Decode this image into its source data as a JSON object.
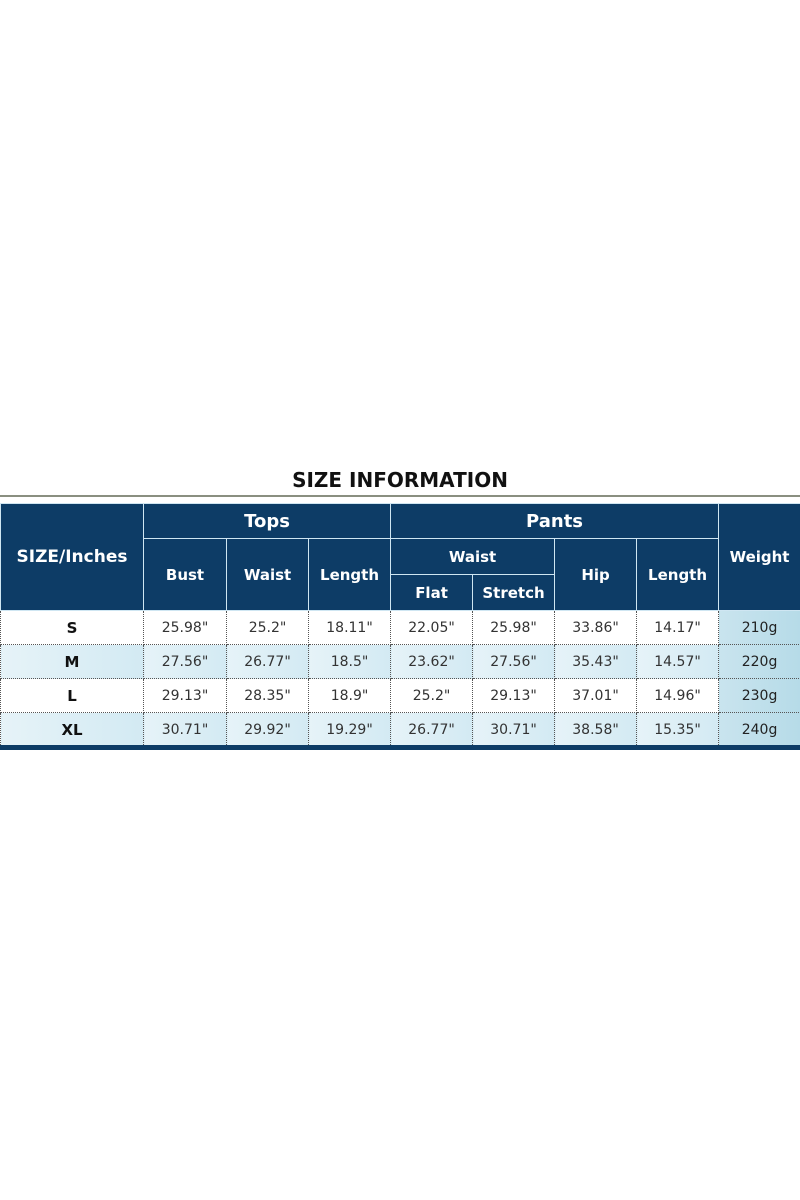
{
  "title": "SIZE INFORMATION",
  "header": {
    "size": "SIZE/Inches",
    "tops": "Tops",
    "pants": "Pants",
    "weight": "Weight",
    "tops_cols": [
      "Bust",
      "Waist",
      "Length"
    ],
    "pants_waist": "Waist",
    "pants_waist_cols": [
      "Flat",
      "Stretch"
    ],
    "pants_hip": "Hip",
    "pants_length": "Length"
  },
  "rows": [
    {
      "size": "S",
      "values": [
        "25.98\"",
        "25.2\"",
        "18.11\"",
        "22.05\"",
        "25.98\"",
        "33.86\"",
        "14.17\""
      ],
      "weight": "210g"
    },
    {
      "size": "M",
      "values": [
        "27.56\"",
        "26.77\"",
        "18.5\"",
        "23.62\"",
        "27.56\"",
        "35.43\"",
        "14.57\""
      ],
      "weight": "220g"
    },
    {
      "size": "L",
      "values": [
        "29.13\"",
        "28.35\"",
        "18.9\"",
        "25.2\"",
        "29.13\"",
        "37.01\"",
        "14.96\""
      ],
      "weight": "230g"
    },
    {
      "size": "XL",
      "values": [
        "30.71\"",
        "29.92\"",
        "19.29\"",
        "26.77\"",
        "30.71\"",
        "38.58\"",
        "15.35\""
      ],
      "weight": "240g"
    }
  ],
  "colors": {
    "header": "#0d3c66",
    "row_alt": "#d7ecf4",
    "weight_col": "#b8dce8"
  }
}
